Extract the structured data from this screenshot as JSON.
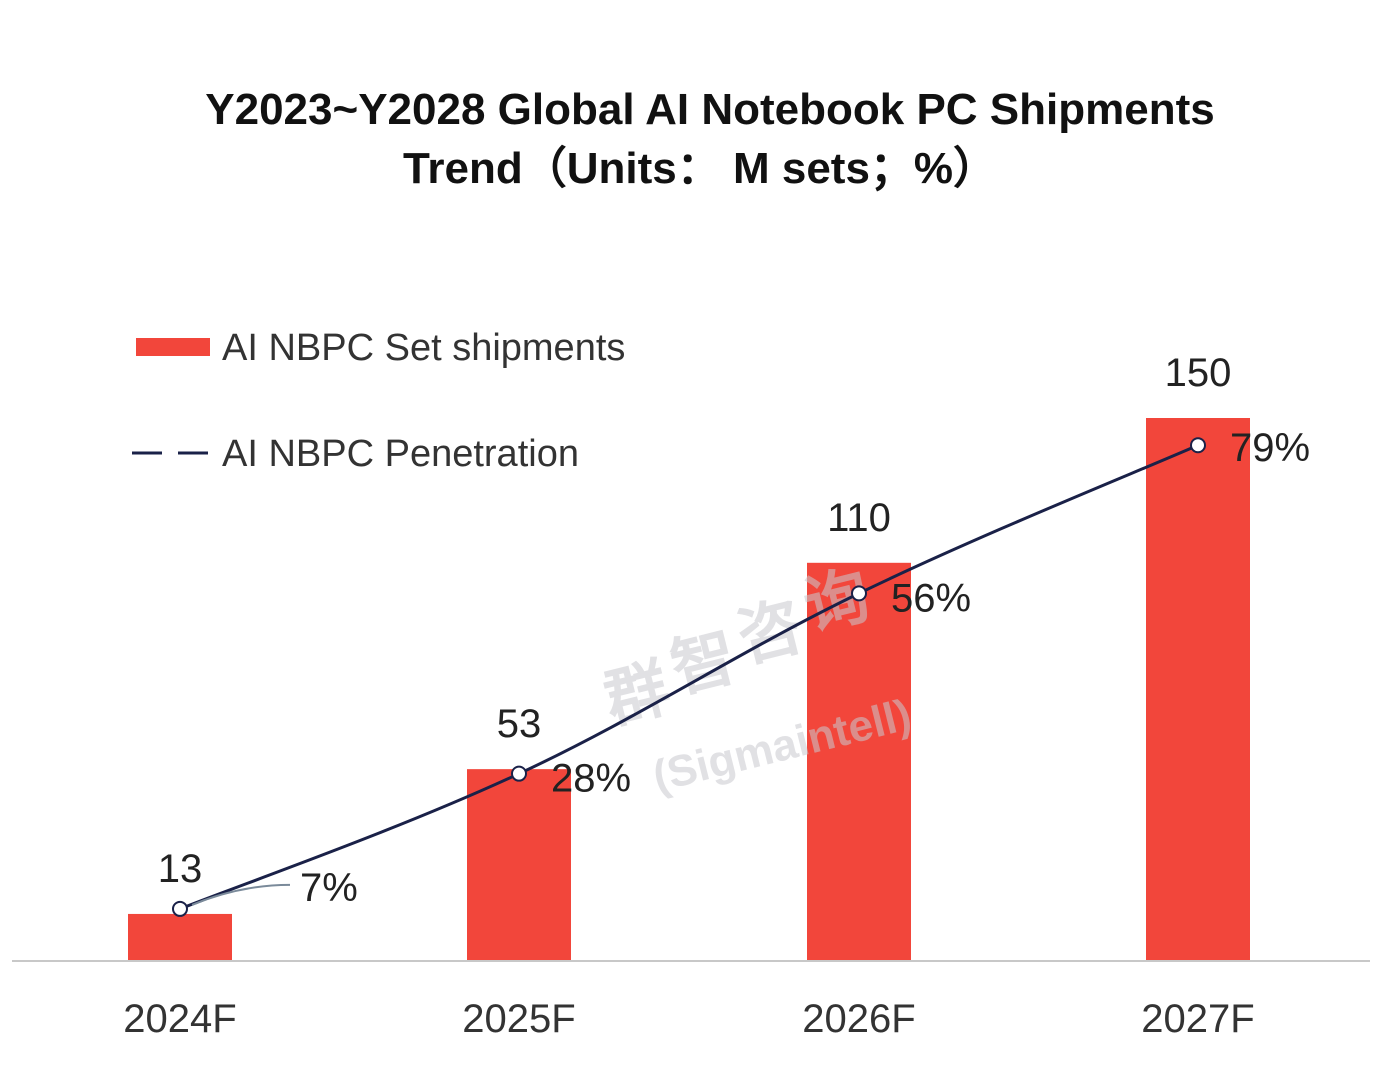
{
  "chart_data": {
    "type": "bar",
    "title_line1": "Y2023~Y2028 Global AI Notebook PC Shipments",
    "title_line2": "Trend（Units： M sets；%）",
    "categories": [
      "2024F",
      "2025F",
      "2026F",
      "2027F"
    ],
    "series": [
      {
        "name": "AI NBPC Set shipments",
        "kind": "bar",
        "values": [
          13,
          53,
          110,
          150
        ],
        "labels": [
          "13",
          "53",
          "110",
          "150"
        ],
        "color": "#f2463b"
      },
      {
        "name": "AI NBPC Penetration",
        "kind": "line",
        "values": [
          7,
          28,
          56,
          79
        ],
        "labels": [
          "7%",
          "28%",
          "56%",
          "79%"
        ],
        "color": "#1a2148"
      }
    ],
    "bar_axis_range": [
      0,
      150
    ],
    "line_axis_range": [
      0,
      100
    ],
    "legend_position": "top-left",
    "grid": false
  },
  "watermark": {
    "chars": [
      "群",
      "智",
      "咨",
      "询"
    ],
    "subtext": "(Sigmaintell)"
  }
}
